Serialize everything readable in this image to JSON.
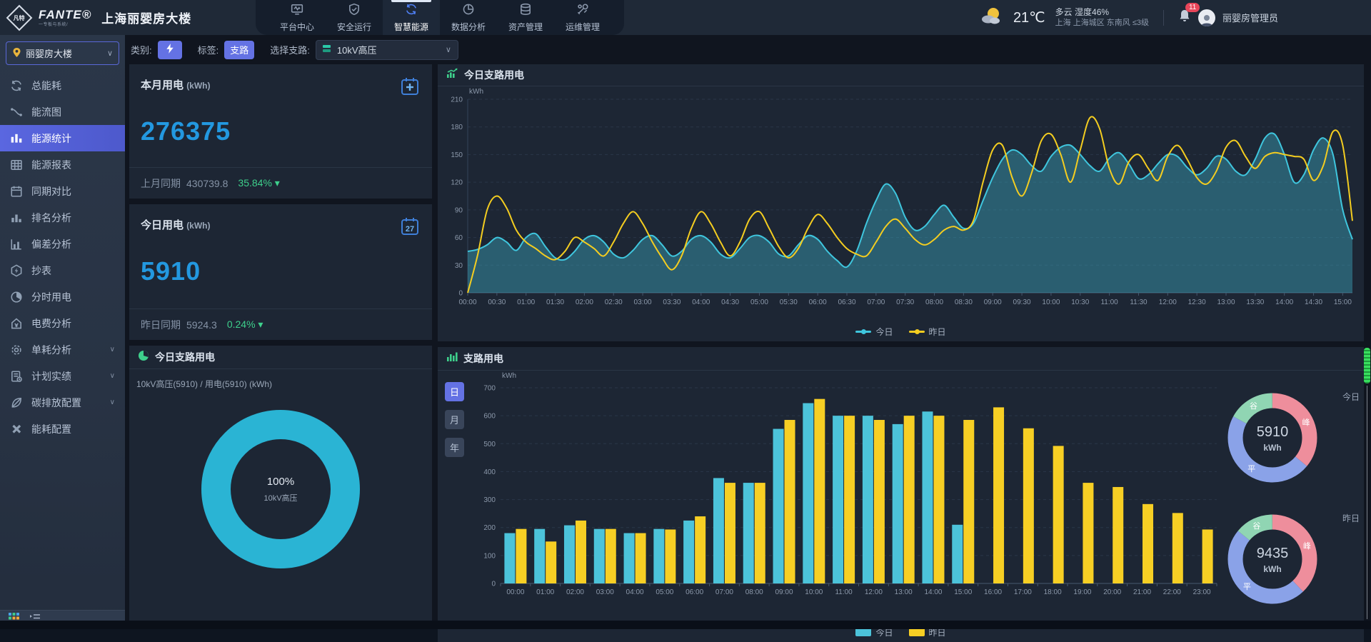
{
  "header": {
    "logo_mark": "凡特",
    "logo_brand": "FANTE®",
    "logo_sub": "一专板与系统/",
    "site_name": "上海丽婴房大楼",
    "nav": [
      {
        "label": "平台中心",
        "icon": "platform-icon",
        "active": false
      },
      {
        "label": "安全运行",
        "icon": "shield-icon",
        "active": false
      },
      {
        "label": "智慧能源",
        "icon": "energy-icon",
        "active": true
      },
      {
        "label": "数据分析",
        "icon": "analysis-icon",
        "active": false
      },
      {
        "label": "资产管理",
        "icon": "asset-icon",
        "active": false
      },
      {
        "label": "运维管理",
        "icon": "ops-icon",
        "active": false
      }
    ],
    "weather": {
      "temp": "21℃",
      "desc": "多云",
      "humidity": "湿度46%",
      "location": "上海 上海城区 东南风 ≤3级"
    },
    "notification_count": "11",
    "username": "丽婴房管理员"
  },
  "sidebar": {
    "building": "丽婴房大楼",
    "items": [
      {
        "label": "总能耗",
        "icon": "recycle-icon",
        "active": false,
        "has_children": false
      },
      {
        "label": "能流图",
        "icon": "flow-icon",
        "active": false,
        "has_children": false
      },
      {
        "label": "能源统计",
        "icon": "stats-icon",
        "active": true,
        "has_children": false
      },
      {
        "label": "能源报表",
        "icon": "table-icon",
        "active": false,
        "has_children": false
      },
      {
        "label": "同期对比",
        "icon": "calendar-icon",
        "active": false,
        "has_children": false
      },
      {
        "label": "排名分析",
        "icon": "ranking-icon",
        "active": false,
        "has_children": false
      },
      {
        "label": "偏差分析",
        "icon": "deviation-icon",
        "active": false,
        "has_children": false
      },
      {
        "label": "抄表",
        "icon": "meter-icon",
        "active": false,
        "has_children": false
      },
      {
        "label": "分时用电",
        "icon": "time-pie-icon",
        "active": false,
        "has_children": false
      },
      {
        "label": "电费分析",
        "icon": "fee-icon",
        "active": false,
        "has_children": false
      },
      {
        "label": "单耗分析",
        "icon": "gear-icon",
        "active": false,
        "has_children": true
      },
      {
        "label": "计划实绩",
        "icon": "plan-icon",
        "active": false,
        "has_children": true
      },
      {
        "label": "碳排放配置",
        "icon": "leaf-icon",
        "active": false,
        "has_children": true
      },
      {
        "label": "能耗配置",
        "icon": "tools-icon",
        "active": false,
        "has_children": false
      }
    ]
  },
  "filter": {
    "category_label": "类别:",
    "tag_label": "标签:",
    "tag_value": "支路",
    "branch_label": "选择支路:",
    "branch_value": "10kV高压"
  },
  "cards": {
    "month": {
      "title": "本月用电",
      "unit": "(kWh)",
      "value": "276375",
      "compare_label": "上月同期",
      "compare_value": "430739.8",
      "percent": "35.84%",
      "trend": "down"
    },
    "today": {
      "title": "今日用电",
      "unit": "(kWh)",
      "value": "5910",
      "compare_label": "昨日同期",
      "compare_value": "5924.3",
      "percent": "0.24%",
      "trend": "down",
      "calendar_day": "27"
    }
  },
  "donut_card": {
    "title": "今日支路用电",
    "subtitle": "10kV高压(5910) / 用电(5910) (kWh)",
    "center_percent": "100%",
    "center_label": "10kV高压",
    "color": "#2ab4d4"
  },
  "chart_data": [
    {
      "id": "today-branch-line",
      "type": "line",
      "title": "今日支路用电",
      "ylabel": "kWh",
      "ylim": [
        0,
        210
      ],
      "yticks": [
        0,
        30,
        60,
        90,
        120,
        150,
        180,
        210
      ],
      "grid": true,
      "legend_position": "bottom",
      "x_interval_minutes": 10,
      "xticks": [
        "00:00",
        "00:30",
        "01:00",
        "01:30",
        "02:00",
        "02:30",
        "03:00",
        "03:30",
        "04:00",
        "04:30",
        "05:00",
        "05:30",
        "06:00",
        "06:30",
        "07:00",
        "07:30",
        "08:00",
        "08:30",
        "09:00",
        "09:30",
        "10:00",
        "10:30",
        "11:00",
        "11:30",
        "12:00",
        "12:30",
        "13:00",
        "13:30",
        "14:00",
        "14:30",
        "15:00"
      ],
      "series": [
        {
          "name": "今日",
          "color": "#3fc6de",
          "fill": true,
          "values": [
            45,
            47,
            52,
            60,
            55,
            46,
            60,
            64,
            50,
            38,
            36,
            45,
            58,
            62,
            55,
            42,
            38,
            46,
            58,
            62,
            52,
            40,
            45,
            58,
            62,
            55,
            42,
            38,
            48,
            60,
            62,
            55,
            42,
            40,
            52,
            62,
            58,
            45,
            35,
            28,
            45,
            75,
            100,
            118,
            108,
            82,
            68,
            72,
            85,
            95,
            82,
            70,
            75,
            100,
            125,
            145,
            155,
            150,
            138,
            132,
            148,
            158,
            160,
            150,
            138,
            132,
            146,
            152,
            140,
            124,
            128,
            140,
            150,
            148,
            136,
            128,
            135,
            148,
            145,
            132,
            128,
            145,
            168,
            172,
            150,
            120,
            128,
            155,
            168,
            150,
            90,
            58
          ]
        },
        {
          "name": "昨日",
          "color": "#f4cd20",
          "fill": false,
          "values": [
            0,
            40,
            90,
            105,
            92,
            68,
            55,
            48,
            40,
            36,
            45,
            60,
            55,
            48,
            40,
            55,
            75,
            88,
            75,
            55,
            38,
            25,
            40,
            70,
            88,
            75,
            55,
            40,
            55,
            80,
            88,
            70,
            50,
            38,
            48,
            70,
            85,
            75,
            60,
            48,
            42,
            40,
            55,
            72,
            80,
            70,
            58,
            52,
            58,
            68,
            72,
            68,
            78,
            120,
            155,
            160,
            125,
            105,
            130,
            165,
            172,
            150,
            120,
            155,
            190,
            178,
            135,
            118,
            142,
            150,
            135,
            122,
            148,
            160,
            145,
            125,
            118,
            132,
            158,
            165,
            148,
            135,
            148,
            152,
            150,
            148,
            145,
            122,
            138,
            175,
            160,
            78
          ]
        }
      ]
    },
    {
      "id": "branch-bar",
      "type": "bar",
      "title": "支路用电",
      "ylabel": "kWh",
      "ylim": [
        0,
        700
      ],
      "yticks": [
        0,
        100,
        200,
        300,
        400,
        500,
        600,
        700
      ],
      "grid": true,
      "legend_position": "bottom",
      "period_buttons": [
        "日",
        "月",
        "年"
      ],
      "active_period": "日",
      "categories": [
        "00:00",
        "01:00",
        "02:00",
        "03:00",
        "04:00",
        "05:00",
        "06:00",
        "07:00",
        "08:00",
        "09:00",
        "10:00",
        "11:00",
        "12:00",
        "13:00",
        "14:00",
        "15:00",
        "16:00",
        "17:00",
        "18:00",
        "19:00",
        "20:00",
        "21:00",
        "22:00",
        "23:00"
      ],
      "series": [
        {
          "name": "今日",
          "color": "#4cc3da",
          "values": [
            180,
            195,
            208,
            195,
            180,
            195,
            225,
            377,
            360,
            553,
            645,
            600,
            600,
            570,
            615,
            210,
            null,
            null,
            null,
            null,
            null,
            null,
            null,
            null
          ]
        },
        {
          "name": "昨日",
          "color": "#f7cf24",
          "values": [
            195,
            150,
            225,
            195,
            180,
            193,
            240,
            360,
            360,
            585,
            660,
            600,
            585,
            600,
            600,
            585,
            630,
            555,
            492,
            360,
            345,
            284,
            252,
            193
          ]
        }
      ]
    },
    {
      "id": "donut-today",
      "type": "pie",
      "side_label": "今日",
      "center_value": "5910",
      "center_unit": "kWh",
      "slices": [
        {
          "name": "峰",
          "value": 36,
          "color": "#ee8e9c"
        },
        {
          "name": "平",
          "value": 47,
          "color": "#8aa2e8"
        },
        {
          "name": "谷",
          "value": 17,
          "color": "#90d5b3"
        }
      ]
    },
    {
      "id": "donut-yesterday",
      "type": "pie",
      "side_label": "昨日",
      "center_value": "9435",
      "center_unit": "kWh",
      "slices": [
        {
          "name": "峰",
          "value": 38,
          "color": "#ee8e9c"
        },
        {
          "name": "平",
          "value": 48,
          "color": "#8aa2e8"
        },
        {
          "name": "谷",
          "value": 14,
          "color": "#90d5b3"
        }
      ]
    }
  ]
}
